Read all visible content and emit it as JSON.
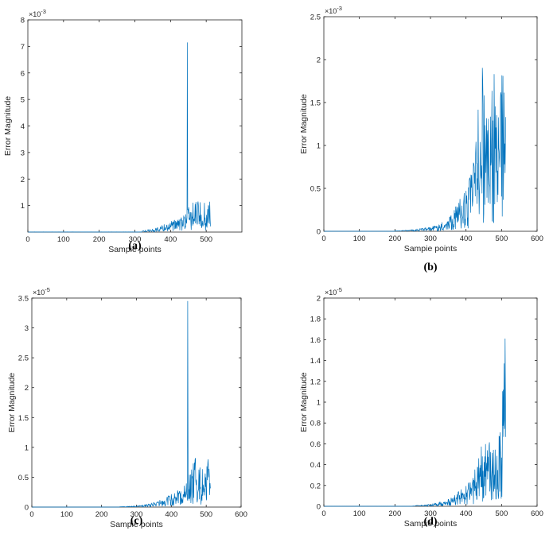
{
  "chart_data": [
    {
      "type": "line",
      "caption": "(a)",
      "xlabel": "Sampie points",
      "ylabel": "Error Magnitude",
      "y_multiplier": "×10",
      "y_exponent": "-3",
      "xlim": [
        0,
        600
      ],
      "ylim": [
        0,
        8
      ],
      "xticks": [
        0,
        100,
        200,
        300,
        400,
        500
      ],
      "yticks": [
        1,
        2,
        3,
        4,
        5,
        6,
        7,
        8
      ],
      "color": "#0072bd",
      "series": [
        {
          "x": [
            320,
            340,
            360,
            380,
            400,
            420,
            440,
            447,
            449,
            460,
            480,
            500,
            512
          ],
          "values": [
            0.05,
            0.1,
            0.15,
            0.3,
            0.4,
            0.5,
            0.75,
            7.15,
            0.9,
            1.1,
            1.2,
            1.1,
            1.3
          ]
        }
      ]
    },
    {
      "type": "line",
      "caption": "(b)",
      "xlabel": "Sampie points",
      "ylabel": "Error Magnitude",
      "y_multiplier": "×10",
      "y_exponent": "-3",
      "xlim": [
        0,
        600
      ],
      "ylim": [
        0,
        2.5
      ],
      "xticks": [
        0,
        100,
        200,
        300,
        400,
        500,
        600
      ],
      "yticks": [
        0,
        0.5,
        1,
        1.5,
        2,
        2.5
      ],
      "color": "#0072bd",
      "series": [
        {
          "x": [
            200,
            250,
            300,
            340,
            370,
            400,
            420,
            440,
            447,
            460,
            480,
            490,
            500,
            512
          ],
          "values": [
            0.005,
            0.02,
            0.05,
            0.12,
            0.3,
            0.5,
            0.8,
            1.75,
            2.03,
            1.3,
            1.95,
            1.3,
            2.03,
            1.42
          ]
        }
      ]
    },
    {
      "type": "line",
      "caption": "(c)",
      "xlabel": "Sampie points",
      "ylabel": "Error Magnitude",
      "y_multiplier": "×10",
      "y_exponent": "-5",
      "xlim": [
        0,
        600
      ],
      "ylim": [
        0,
        3.5
      ],
      "xticks": [
        0,
        100,
        200,
        300,
        400,
        500,
        600
      ],
      "yticks": [
        0,
        0.5,
        1,
        1.5,
        2,
        2.5,
        3,
        3.5
      ],
      "color": "#0072bd",
      "series": [
        {
          "x": [
            250,
            300,
            340,
            380,
            420,
            440,
            447,
            449,
            460,
            480,
            500,
            508,
            512
          ],
          "values": [
            0.005,
            0.02,
            0.06,
            0.15,
            0.3,
            0.45,
            3.45,
            0.6,
            0.9,
            0.8,
            0.6,
            1.2,
            0.35
          ]
        }
      ]
    },
    {
      "type": "line",
      "caption": "(d)",
      "xlabel": "Sampie points",
      "ylabel": "Error Magnitude",
      "y_multiplier": "×10",
      "y_exponent": "-5",
      "xlim": [
        0,
        600
      ],
      "ylim": [
        0,
        2
      ],
      "xticks": [
        0,
        100,
        200,
        300,
        400,
        500,
        600
      ],
      "yticks": [
        0,
        0.2,
        0.4,
        0.6,
        0.8,
        1,
        1.2,
        1.4,
        1.6,
        1.8,
        2
      ],
      "color": "#0072bd",
      "series": [
        {
          "x": [
            250,
            300,
            340,
            380,
            420,
            440,
            460,
            480,
            495,
            500,
            505,
            508,
            512
          ],
          "values": [
            0.005,
            0.02,
            0.05,
            0.15,
            0.3,
            0.58,
            0.68,
            0.55,
            0.7,
            1.62,
            1.3,
            1.8,
            1.45
          ]
        }
      ]
    }
  ]
}
